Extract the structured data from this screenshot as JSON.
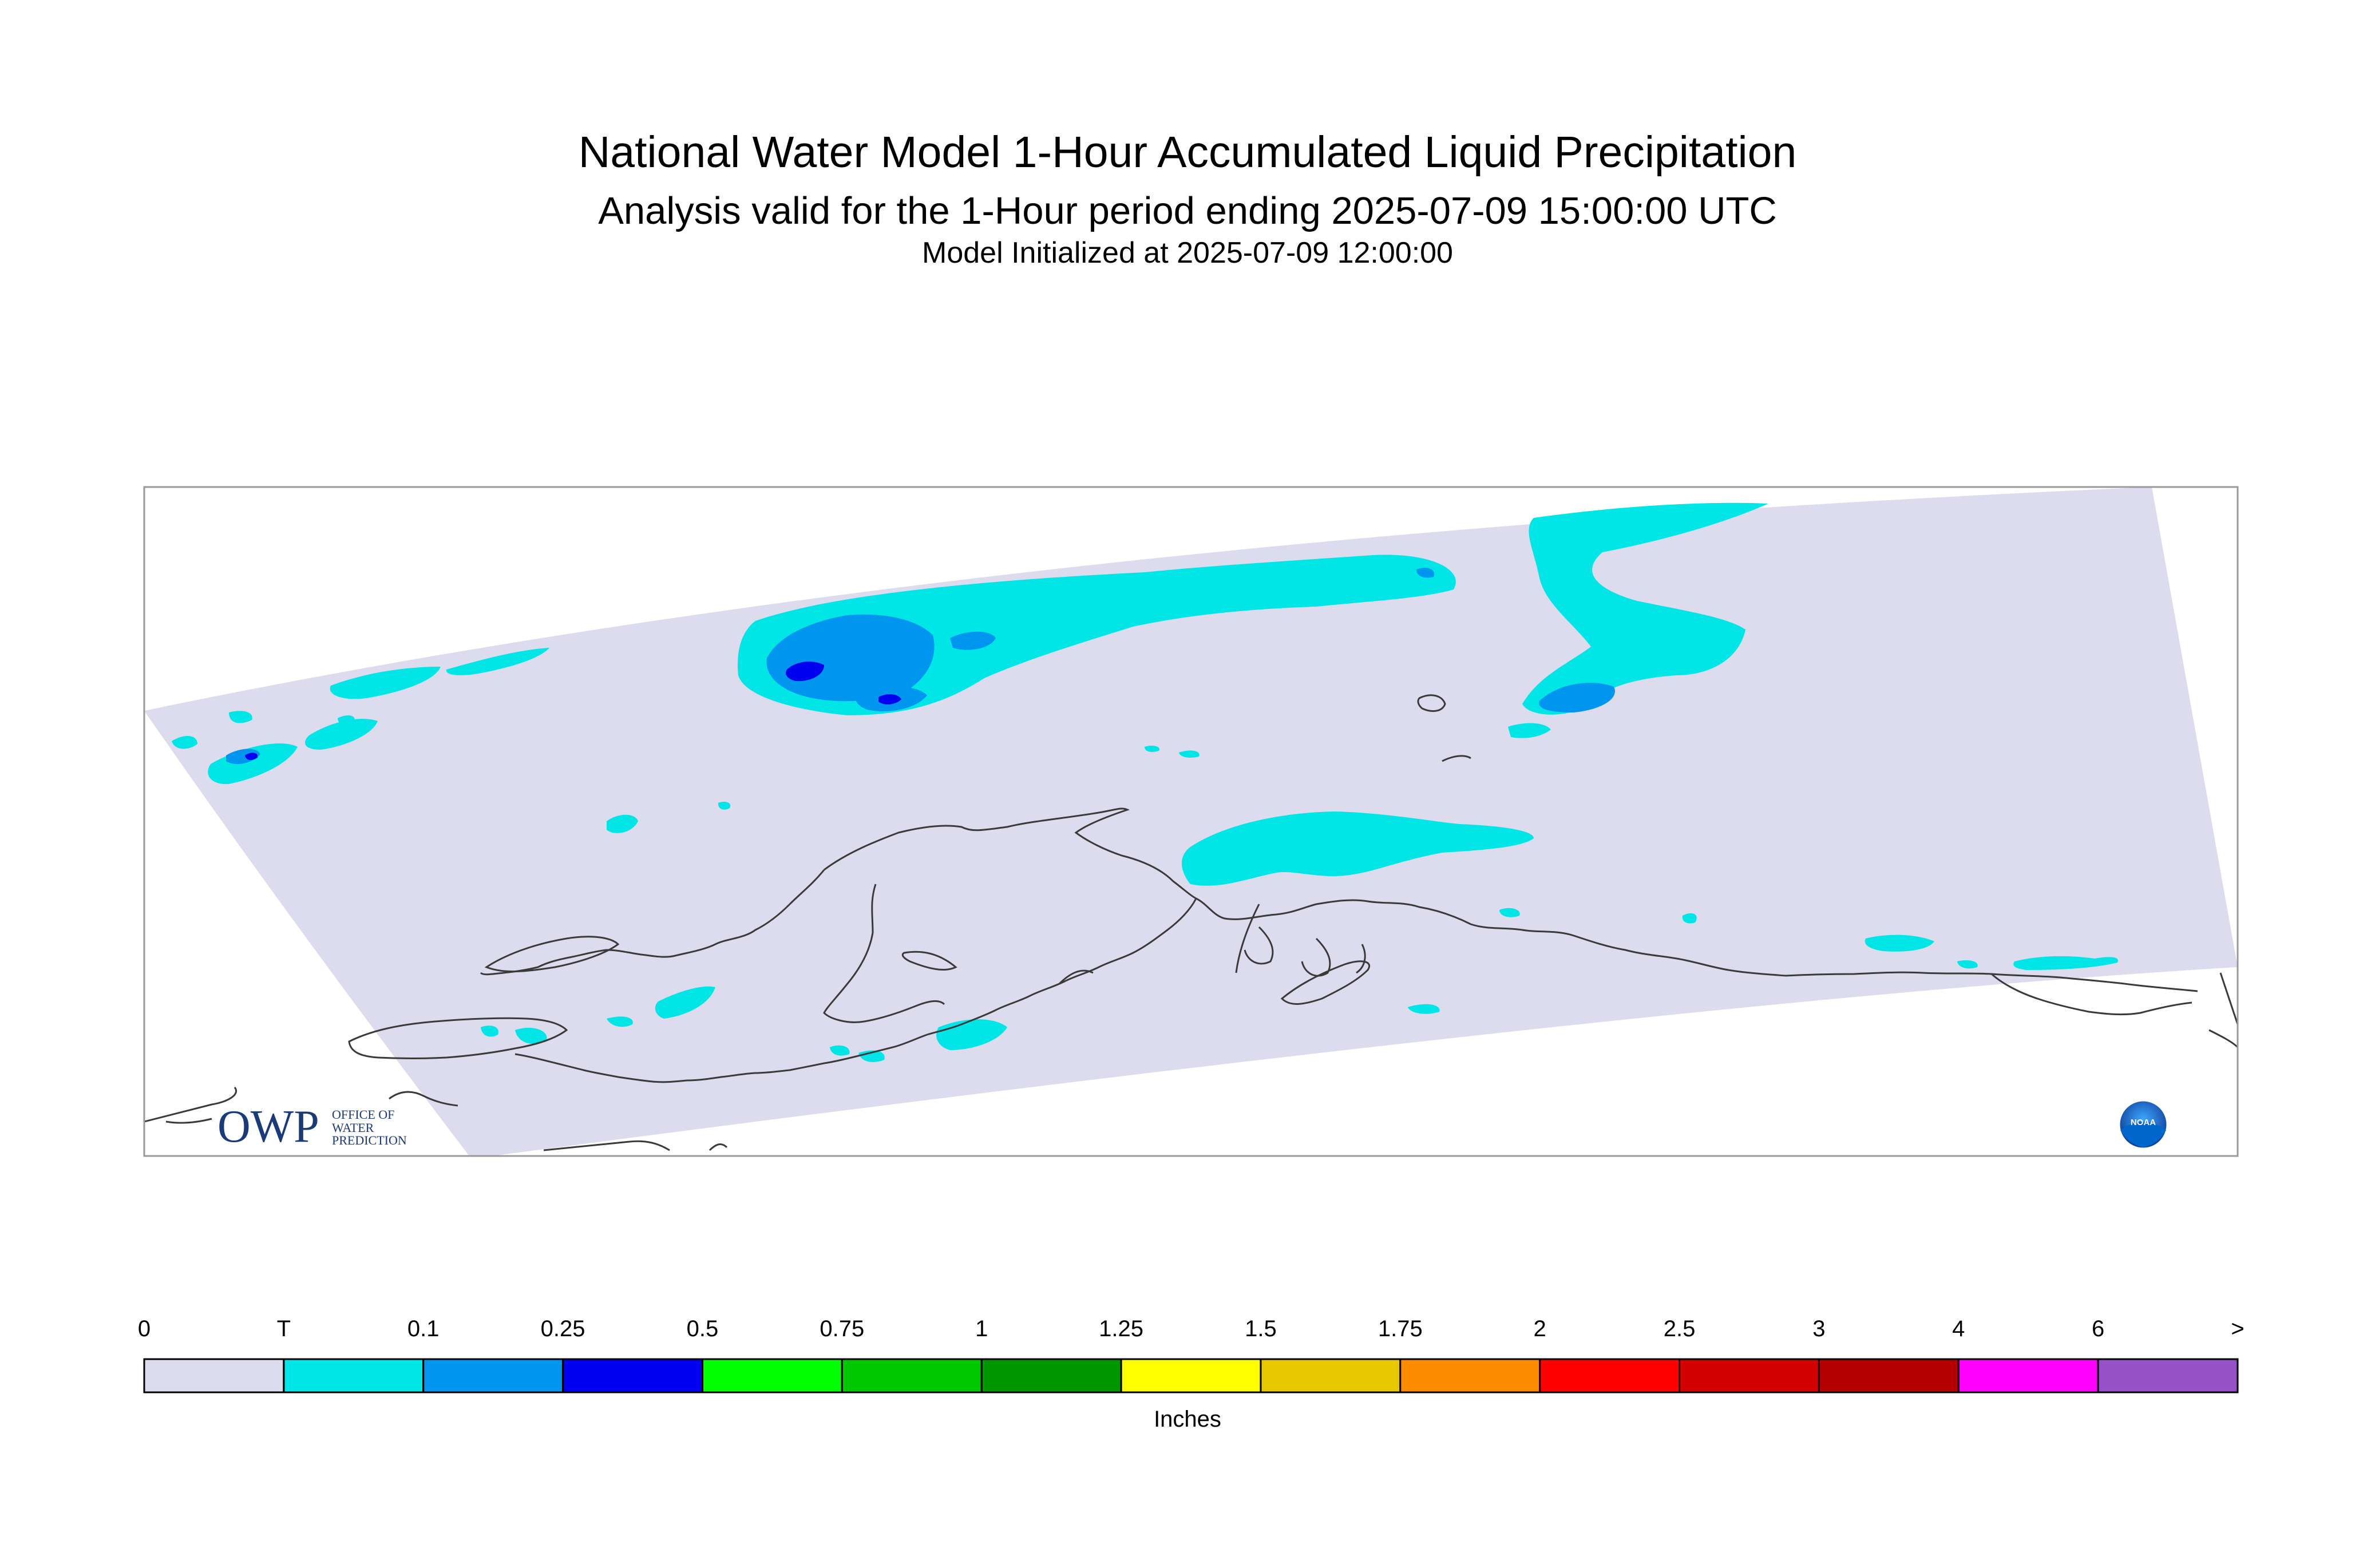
{
  "header": {
    "title": "National Water Model 1-Hour Accumulated Liquid Precipitation",
    "subtitle": "Analysis valid for the 1-Hour period ending 2025-07-09 15:00:00 UTC",
    "init": "Model Initialized at 2025-07-09 12:00:00"
  },
  "map": {
    "domain_color": "#dcdcee",
    "coast_color": "#3a3a3a",
    "precip_colors": {
      "T": "#00e6e6",
      "0.1": "#0096f0",
      "0.25": "#0000f0"
    }
  },
  "logos": {
    "owp": {
      "mark": "OWP",
      "line1": "OFFICE OF",
      "line2": "WATER",
      "line3": "PREDICTION",
      "color": "#1a3a7a"
    },
    "noaa": {
      "text": "NOAA",
      "color": "#0a5fb4"
    }
  },
  "legend": {
    "units": "Inches",
    "labels": [
      "0",
      "T",
      "0.1",
      "0.25",
      "0.5",
      "0.75",
      "1",
      "1.25",
      "1.5",
      "1.75",
      "2",
      "2.5",
      "3",
      "4",
      "6",
      ">"
    ],
    "colors": [
      "#dcdcee",
      "#00e6e6",
      "#0096f0",
      "#0000f0",
      "#00ff00",
      "#00c800",
      "#009600",
      "#ffff00",
      "#e6c800",
      "#ff8c00",
      "#ff0000",
      "#d20000",
      "#b40000",
      "#ff00ff",
      "#9650c8"
    ]
  }
}
